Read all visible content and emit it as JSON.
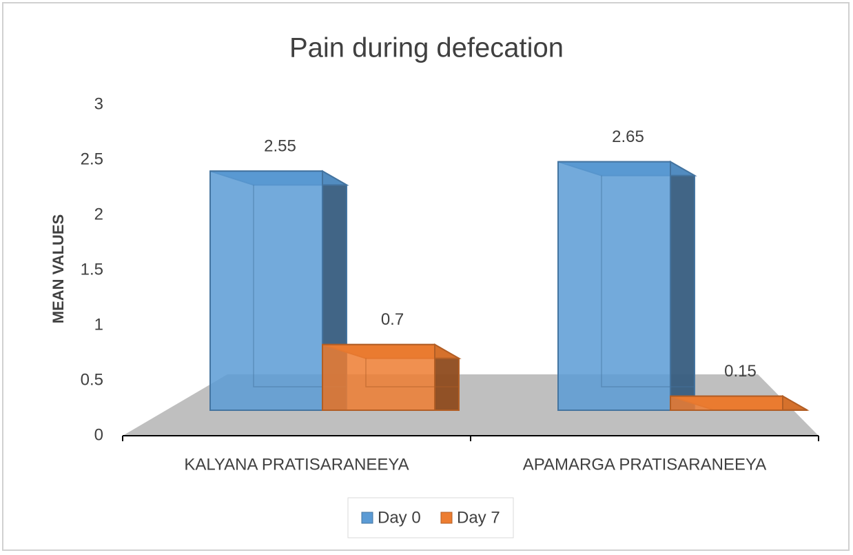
{
  "chart_data": {
    "type": "bar",
    "title": "Pain during defecation",
    "y_label": "MEAN VALUES",
    "categories": [
      "KALYANA PRATISARANEEYA",
      "APAMARGA PRATISARANEEYA"
    ],
    "series": [
      {
        "name": "Day 0",
        "color": "#5b9bd5",
        "values": [
          2.55,
          2.65
        ]
      },
      {
        "name": "Day 7",
        "color": "#ed7d31",
        "values": [
          0.7,
          0.15
        ]
      }
    ],
    "ylim": [
      0,
      3
    ],
    "yticks": [
      0,
      0.5,
      1,
      1.5,
      2,
      2.5,
      3
    ],
    "legend": "bottom"
  }
}
